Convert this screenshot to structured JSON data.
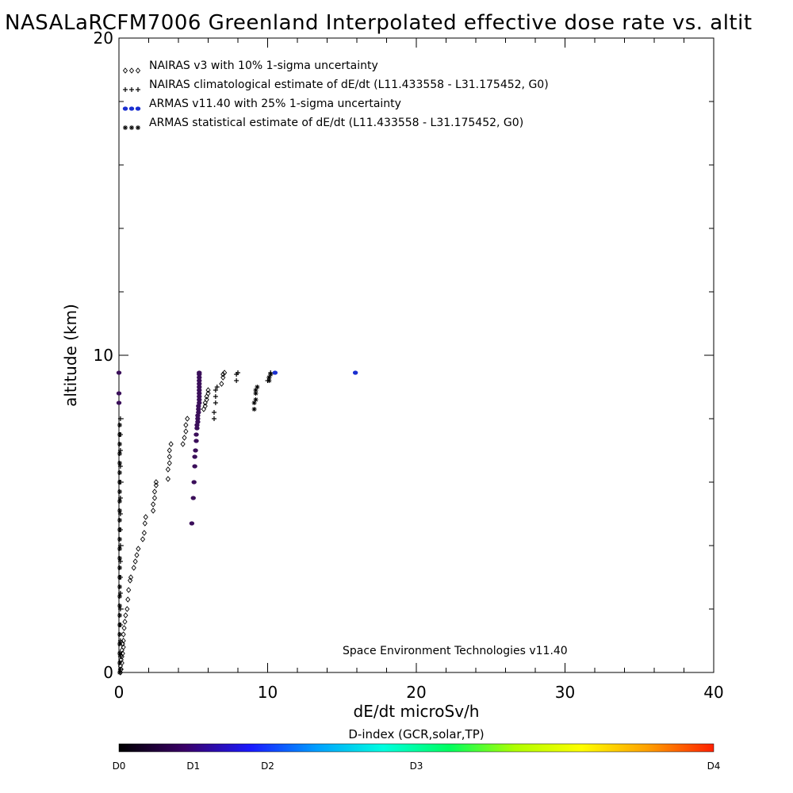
{
  "chart_data": {
    "type": "scatter",
    "title": "NASALaRCFM7006  Greenland Interpolated effective dose rate vs. altit",
    "xlabel": "dE/dt microSv/h",
    "ylabel": "altitude (km)",
    "xlim": [
      0,
      40
    ],
    "ylim": [
      0,
      20
    ],
    "x_ticks": [
      0,
      10,
      20,
      30,
      40
    ],
    "y_ticks": [
      0,
      10,
      20
    ],
    "x_tick_labels": [
      "0",
      "10",
      "20",
      "30",
      "40"
    ],
    "y_tick_labels": [
      "0",
      "10",
      "20"
    ],
    "legend_position": "top-left",
    "grid": false,
    "credit": "Space Environment Technologies v11.40",
    "colorbar": {
      "title": "D-index (GCR,solar,TP)",
      "labels": [
        "D0",
        "D1",
        "D2",
        "D3",
        "D4"
      ],
      "label_positions": [
        0,
        0.125,
        0.25,
        0.5,
        1.0
      ],
      "stops": [
        "#000000",
        "#3a0068",
        "#1a1aff",
        "#00a0ff",
        "#00ffe0",
        "#00ff60",
        "#b0ff00",
        "#ffff00",
        "#ffa000",
        "#ff2000"
      ]
    },
    "series": [
      {
        "name": "NAIRAS v3 with 10% 1-sigma uncertainty",
        "marker": "diamond",
        "color": "#000000",
        "points": [
          [
            0.1,
            0.0
          ],
          [
            0.15,
            0.1
          ],
          [
            0.1,
            0.2
          ],
          [
            0.2,
            0.3
          ],
          [
            0.15,
            0.4
          ],
          [
            0.2,
            0.5
          ],
          [
            0.25,
            0.6
          ],
          [
            0.2,
            0.7
          ],
          [
            0.3,
            0.8
          ],
          [
            0.25,
            0.9
          ],
          [
            0.3,
            1.0
          ],
          [
            0.3,
            1.2
          ],
          [
            0.35,
            1.4
          ],
          [
            0.4,
            1.6
          ],
          [
            0.45,
            1.8
          ],
          [
            0.55,
            2.0
          ],
          [
            0.6,
            2.3
          ],
          [
            0.65,
            2.6
          ],
          [
            0.75,
            2.9
          ],
          [
            0.8,
            3.0
          ],
          [
            1.0,
            3.3
          ],
          [
            1.1,
            3.5
          ],
          [
            1.2,
            3.7
          ],
          [
            1.3,
            3.9
          ],
          [
            1.6,
            4.2
          ],
          [
            1.7,
            4.4
          ],
          [
            1.75,
            4.7
          ],
          [
            1.8,
            4.9
          ],
          [
            2.3,
            5.1
          ],
          [
            2.3,
            5.3
          ],
          [
            2.4,
            5.5
          ],
          [
            2.4,
            5.7
          ],
          [
            2.5,
            5.9
          ],
          [
            2.5,
            6.0
          ],
          [
            3.3,
            6.1
          ],
          [
            3.3,
            6.4
          ],
          [
            3.4,
            6.6
          ],
          [
            3.4,
            6.8
          ],
          [
            3.4,
            7.0
          ],
          [
            3.5,
            7.2
          ],
          [
            4.3,
            7.2
          ],
          [
            4.4,
            7.4
          ],
          [
            4.5,
            7.6
          ],
          [
            4.5,
            7.8
          ],
          [
            4.6,
            8.0
          ],
          [
            5.7,
            8.3
          ],
          [
            5.8,
            8.4
          ],
          [
            5.8,
            8.5
          ],
          [
            5.9,
            8.6
          ],
          [
            5.9,
            8.7
          ],
          [
            6.0,
            8.8
          ],
          [
            6.0,
            8.9
          ],
          [
            6.9,
            9.1
          ],
          [
            7.0,
            9.3
          ],
          [
            7.0,
            9.4
          ],
          [
            7.1,
            9.45
          ]
        ]
      },
      {
        "name": "NAIRAS climatological estimate of dE/dt (L11.433558 - L31.175452, G0)",
        "marker": "plus",
        "color": "#000000",
        "points": [
          [
            0.1,
            0.1
          ],
          [
            0.1,
            0.5
          ],
          [
            0.1,
            1.0
          ],
          [
            0.1,
            1.5
          ],
          [
            0.1,
            2.0
          ],
          [
            0.1,
            2.5
          ],
          [
            0.1,
            3.0
          ],
          [
            0.1,
            3.5
          ],
          [
            0.1,
            4.0
          ],
          [
            0.1,
            4.5
          ],
          [
            0.1,
            5.0
          ],
          [
            0.1,
            5.5
          ],
          [
            0.1,
            6.0
          ],
          [
            0.1,
            6.5
          ],
          [
            0.1,
            7.0
          ],
          [
            0.1,
            7.5
          ],
          [
            0.1,
            8.0
          ],
          [
            6.4,
            8.0
          ],
          [
            6.4,
            8.2
          ],
          [
            6.5,
            8.5
          ],
          [
            6.5,
            8.7
          ],
          [
            6.5,
            8.9
          ],
          [
            6.6,
            9.0
          ],
          [
            7.9,
            9.2
          ],
          [
            7.9,
            9.4
          ],
          [
            8.0,
            9.45
          ],
          [
            10.0,
            9.2
          ],
          [
            10.1,
            9.3
          ],
          [
            10.2,
            9.4
          ],
          [
            10.2,
            9.45
          ]
        ]
      },
      {
        "name": "ARMAS v11.40 with 25% 1-sigma uncertainty",
        "marker": "dot",
        "color": "#1a2fd0",
        "points": [
          [
            15.9,
            9.45
          ],
          [
            10.5,
            9.45
          ]
        ]
      },
      {
        "name": "ARMAS statistical estimate of dE/dt (L11.433558 - L31.175452, G0)",
        "marker": "asterisk",
        "color": "#000000",
        "points": [
          [
            0.05,
            0.0
          ],
          [
            0.05,
            0.3
          ],
          [
            0.05,
            0.6
          ],
          [
            0.05,
            0.9
          ],
          [
            0.05,
            1.2
          ],
          [
            0.05,
            1.5
          ],
          [
            0.05,
            1.8
          ],
          [
            0.05,
            2.1
          ],
          [
            0.05,
            2.4
          ],
          [
            0.05,
            2.7
          ],
          [
            0.05,
            3.0
          ],
          [
            0.05,
            3.3
          ],
          [
            0.05,
            3.6
          ],
          [
            0.05,
            3.9
          ],
          [
            0.05,
            4.2
          ],
          [
            0.05,
            4.5
          ],
          [
            0.05,
            4.8
          ],
          [
            0.05,
            5.1
          ],
          [
            0.05,
            5.4
          ],
          [
            0.05,
            5.7
          ],
          [
            0.05,
            6.0
          ],
          [
            0.05,
            6.3
          ],
          [
            0.05,
            6.6
          ],
          [
            0.05,
            6.9
          ],
          [
            0.05,
            7.2
          ],
          [
            0.05,
            7.5
          ],
          [
            0.05,
            7.8
          ],
          [
            9.1,
            8.3
          ],
          [
            9.1,
            8.5
          ],
          [
            9.2,
            8.6
          ],
          [
            9.2,
            8.8
          ],
          [
            9.2,
            8.9
          ],
          [
            9.3,
            9.0
          ],
          [
            10.1,
            9.2
          ],
          [
            10.1,
            9.3
          ],
          [
            10.2,
            9.4
          ]
        ]
      }
    ],
    "armas_track": {
      "marker": "dot",
      "color": "#3b0f5a",
      "points": [
        [
          0.0,
          8.5
        ],
        [
          0.0,
          8.8
        ],
        [
          0.0,
          9.45
        ],
        [
          4.9,
          4.7
        ],
        [
          5.0,
          5.5
        ],
        [
          5.05,
          6.0
        ],
        [
          5.1,
          6.5
        ],
        [
          5.1,
          6.8
        ],
        [
          5.15,
          7.0
        ],
        [
          5.2,
          7.3
        ],
        [
          5.2,
          7.5
        ],
        [
          5.25,
          7.7
        ],
        [
          5.25,
          7.8
        ],
        [
          5.3,
          7.9
        ],
        [
          5.3,
          8.0
        ],
        [
          5.3,
          8.1
        ],
        [
          5.35,
          8.2
        ],
        [
          5.35,
          8.3
        ],
        [
          5.35,
          8.4
        ],
        [
          5.4,
          8.5
        ],
        [
          5.4,
          8.6
        ],
        [
          5.4,
          8.7
        ],
        [
          5.4,
          8.8
        ],
        [
          5.4,
          8.9
        ],
        [
          5.4,
          9.0
        ],
        [
          5.4,
          9.1
        ],
        [
          5.4,
          9.2
        ],
        [
          5.4,
          9.3
        ],
        [
          5.4,
          9.4
        ],
        [
          5.4,
          9.45
        ]
      ]
    }
  }
}
